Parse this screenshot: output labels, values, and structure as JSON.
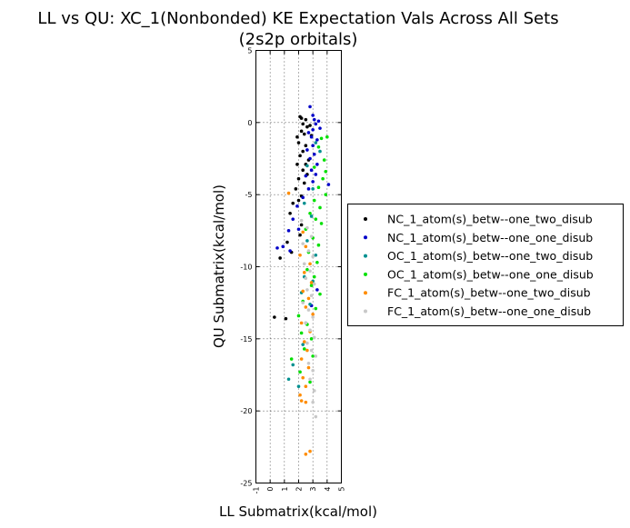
{
  "chart_data": {
    "type": "scatter",
    "title": "LL vs QU: XC_1(Nonbonded) KE Expectation Vals Across All Sets",
    "subtitle": "(2s2p orbitals)",
    "xlabel": "LL Submatrix(kcal/mol)",
    "ylabel": "QU Submatrix(kcal/mol)",
    "xlim": [
      -1,
      5
    ],
    "ylim": [
      -25,
      5
    ],
    "xticks": [
      "-1",
      "0",
      "1",
      "2",
      "3",
      "4",
      "5"
    ],
    "yticks": [
      "5",
      "0",
      "-5",
      "-10",
      "-15",
      "-20",
      "-25"
    ],
    "grid": true,
    "legend_position": "right",
    "series": [
      {
        "name": "NC_1_atom(s)_betw--one_two_disub",
        "color": "#000000",
        "points": [
          [
            2.1,
            0.4
          ],
          [
            2.2,
            0.3
          ],
          [
            2.5,
            0.2
          ],
          [
            2.3,
            -0.1
          ],
          [
            2.6,
            -0.3
          ],
          [
            2.2,
            -0.6
          ],
          [
            2.4,
            -0.8
          ],
          [
            1.9,
            -1.0
          ],
          [
            2.0,
            -1.4
          ],
          [
            2.5,
            -1.6
          ],
          [
            2.3,
            -2.0
          ],
          [
            2.1,
            -2.3
          ],
          [
            2.7,
            -2.6
          ],
          [
            1.9,
            -2.9
          ],
          [
            2.3,
            -3.3
          ],
          [
            2.6,
            -3.6
          ],
          [
            2.0,
            -3.9
          ],
          [
            2.4,
            -4.2
          ],
          [
            1.8,
            -4.6
          ],
          [
            2.2,
            -5.1
          ],
          [
            2.0,
            -5.4
          ],
          [
            1.6,
            -5.6
          ],
          [
            1.4,
            -6.3
          ],
          [
            2.2,
            -7.1
          ],
          [
            2.1,
            -7.8
          ],
          [
            1.2,
            -8.3
          ],
          [
            0.7,
            -9.4
          ],
          [
            1.5,
            -9.0
          ],
          [
            0.3,
            -13.5
          ],
          [
            1.1,
            -13.6
          ],
          [
            2.8,
            -0.2
          ],
          [
            2.9,
            -0.9
          ],
          [
            2.5,
            -2.9
          ]
        ]
      },
      {
        "name": "NC_1_atom(s)_betw--one_one_disub",
        "color": "#0000c8",
        "points": [
          [
            2.8,
            1.1
          ],
          [
            3.0,
            0.5
          ],
          [
            3.1,
            0.2
          ],
          [
            3.2,
            -0.1
          ],
          [
            3.4,
            0.1
          ],
          [
            3.0,
            -0.5
          ],
          [
            2.9,
            -1.0
          ],
          [
            3.3,
            -1.2
          ],
          [
            3.0,
            -1.6
          ],
          [
            2.6,
            -1.9
          ],
          [
            3.1,
            -2.2
          ],
          [
            2.8,
            -2.5
          ],
          [
            3.3,
            -2.9
          ],
          [
            2.9,
            -3.3
          ],
          [
            2.5,
            -3.7
          ],
          [
            3.0,
            -4.1
          ],
          [
            4.1,
            -4.3
          ],
          [
            2.7,
            -4.6
          ],
          [
            2.3,
            -5.2
          ],
          [
            1.9,
            -5.8
          ],
          [
            1.6,
            -6.7
          ],
          [
            2.0,
            -7.4
          ],
          [
            1.3,
            -7.5
          ],
          [
            0.5,
            -8.7
          ],
          [
            0.9,
            -8.6
          ],
          [
            1.4,
            -8.9
          ],
          [
            2.9,
            -12.7
          ],
          [
            3.3,
            -11.6
          ],
          [
            3.5,
            -0.4
          ],
          [
            2.7,
            -0.7
          ],
          [
            3.2,
            -3.6
          ]
        ]
      },
      {
        "name": "OC_1_atom(s)_betw--one_two_disub",
        "color": "#009090",
        "points": [
          [
            3.2,
            -1.4
          ],
          [
            3.5,
            -2.0
          ],
          [
            2.6,
            -3.0
          ],
          [
            3.0,
            -4.6
          ],
          [
            2.4,
            -5.6
          ],
          [
            2.9,
            -6.5
          ],
          [
            2.6,
            -8.2
          ],
          [
            3.2,
            -9.2
          ],
          [
            2.4,
            -10.7
          ],
          [
            3.0,
            -11.0
          ],
          [
            2.2,
            -11.8
          ],
          [
            2.8,
            -12.6
          ],
          [
            2.5,
            -13.9
          ],
          [
            1.6,
            -16.8
          ],
          [
            1.3,
            -17.8
          ],
          [
            2.0,
            -18.3
          ],
          [
            2.3,
            -15.4
          ]
        ]
      },
      {
        "name": "OC_1_atom(s)_betw--one_one_disub",
        "color": "#00e000",
        "points": [
          [
            3.6,
            -1.1
          ],
          [
            3.4,
            -1.7
          ],
          [
            3.8,
            -2.6
          ],
          [
            3.1,
            -3.1
          ],
          [
            3.7,
            -3.9
          ],
          [
            3.4,
            -4.5
          ],
          [
            3.9,
            -5.0
          ],
          [
            3.1,
            -5.4
          ],
          [
            3.5,
            -5.9
          ],
          [
            2.8,
            -6.3
          ],
          [
            3.2,
            -6.7
          ],
          [
            3.6,
            -7.0
          ],
          [
            2.5,
            -7.4
          ],
          [
            3.0,
            -8.0
          ],
          [
            3.4,
            -8.5
          ],
          [
            2.7,
            -9.0
          ],
          [
            3.3,
            -9.7
          ],
          [
            2.6,
            -10.2
          ],
          [
            3.1,
            -10.7
          ],
          [
            2.9,
            -11.3
          ],
          [
            3.5,
            -11.9
          ],
          [
            2.3,
            -12.4
          ],
          [
            3.2,
            -12.9
          ],
          [
            2.0,
            -13.4
          ],
          [
            2.6,
            -14.0
          ],
          [
            2.2,
            -14.6
          ],
          [
            2.9,
            -15.0
          ],
          [
            2.4,
            -15.7
          ],
          [
            1.5,
            -16.4
          ],
          [
            2.1,
            -17.3
          ],
          [
            2.8,
            -18.0
          ],
          [
            3.0,
            -16.2
          ],
          [
            3.9,
            -3.4
          ],
          [
            4.0,
            -1.0
          ]
        ]
      },
      {
        "name": "FC_1_atom(s)_betw--one_two_disub",
        "color": "#ff8c00",
        "points": [
          [
            1.3,
            -4.9
          ],
          [
            2.3,
            -7.6
          ],
          [
            2.5,
            -8.6
          ],
          [
            2.1,
            -9.2
          ],
          [
            2.8,
            -9.8
          ],
          [
            2.4,
            -10.4
          ],
          [
            2.9,
            -11.1
          ],
          [
            2.3,
            -11.7
          ],
          [
            2.7,
            -12.2
          ],
          [
            2.5,
            -12.8
          ],
          [
            3.0,
            -13.3
          ],
          [
            2.2,
            -13.9
          ],
          [
            2.8,
            -14.5
          ],
          [
            2.4,
            -15.2
          ],
          [
            2.6,
            -15.8
          ],
          [
            2.2,
            -16.4
          ],
          [
            2.7,
            -17.0
          ],
          [
            2.3,
            -17.7
          ],
          [
            2.5,
            -18.3
          ],
          [
            2.1,
            -18.9
          ],
          [
            2.2,
            -19.3
          ],
          [
            2.5,
            -19.4
          ],
          [
            2.8,
            -22.8
          ],
          [
            2.5,
            -23.0
          ]
        ]
      },
      {
        "name": "FC_1_atom(s)_betw--one_one_disub",
        "color": "#c8c8c8",
        "points": [
          [
            2.2,
            -6.8
          ],
          [
            2.6,
            -7.3
          ],
          [
            2.9,
            -7.9
          ],
          [
            2.3,
            -8.4
          ],
          [
            2.7,
            -8.9
          ],
          [
            3.0,
            -9.3
          ],
          [
            2.4,
            -9.8
          ],
          [
            2.8,
            -10.3
          ],
          [
            2.5,
            -10.8
          ],
          [
            3.1,
            -11.2
          ],
          [
            2.6,
            -11.6
          ],
          [
            2.9,
            -12.0
          ],
          [
            2.3,
            -12.5
          ],
          [
            2.7,
            -13.0
          ],
          [
            3.0,
            -13.5
          ],
          [
            2.5,
            -13.9
          ],
          [
            2.8,
            -14.4
          ],
          [
            3.1,
            -14.9
          ],
          [
            2.6,
            -15.3
          ],
          [
            2.9,
            -15.8
          ],
          [
            3.2,
            -16.2
          ],
          [
            2.7,
            -16.7
          ],
          [
            3.0,
            -17.2
          ],
          [
            2.8,
            -17.8
          ],
          [
            3.1,
            -18.6
          ],
          [
            3.2,
            -20.4
          ],
          [
            3.0,
            -19.4
          ]
        ]
      }
    ]
  }
}
